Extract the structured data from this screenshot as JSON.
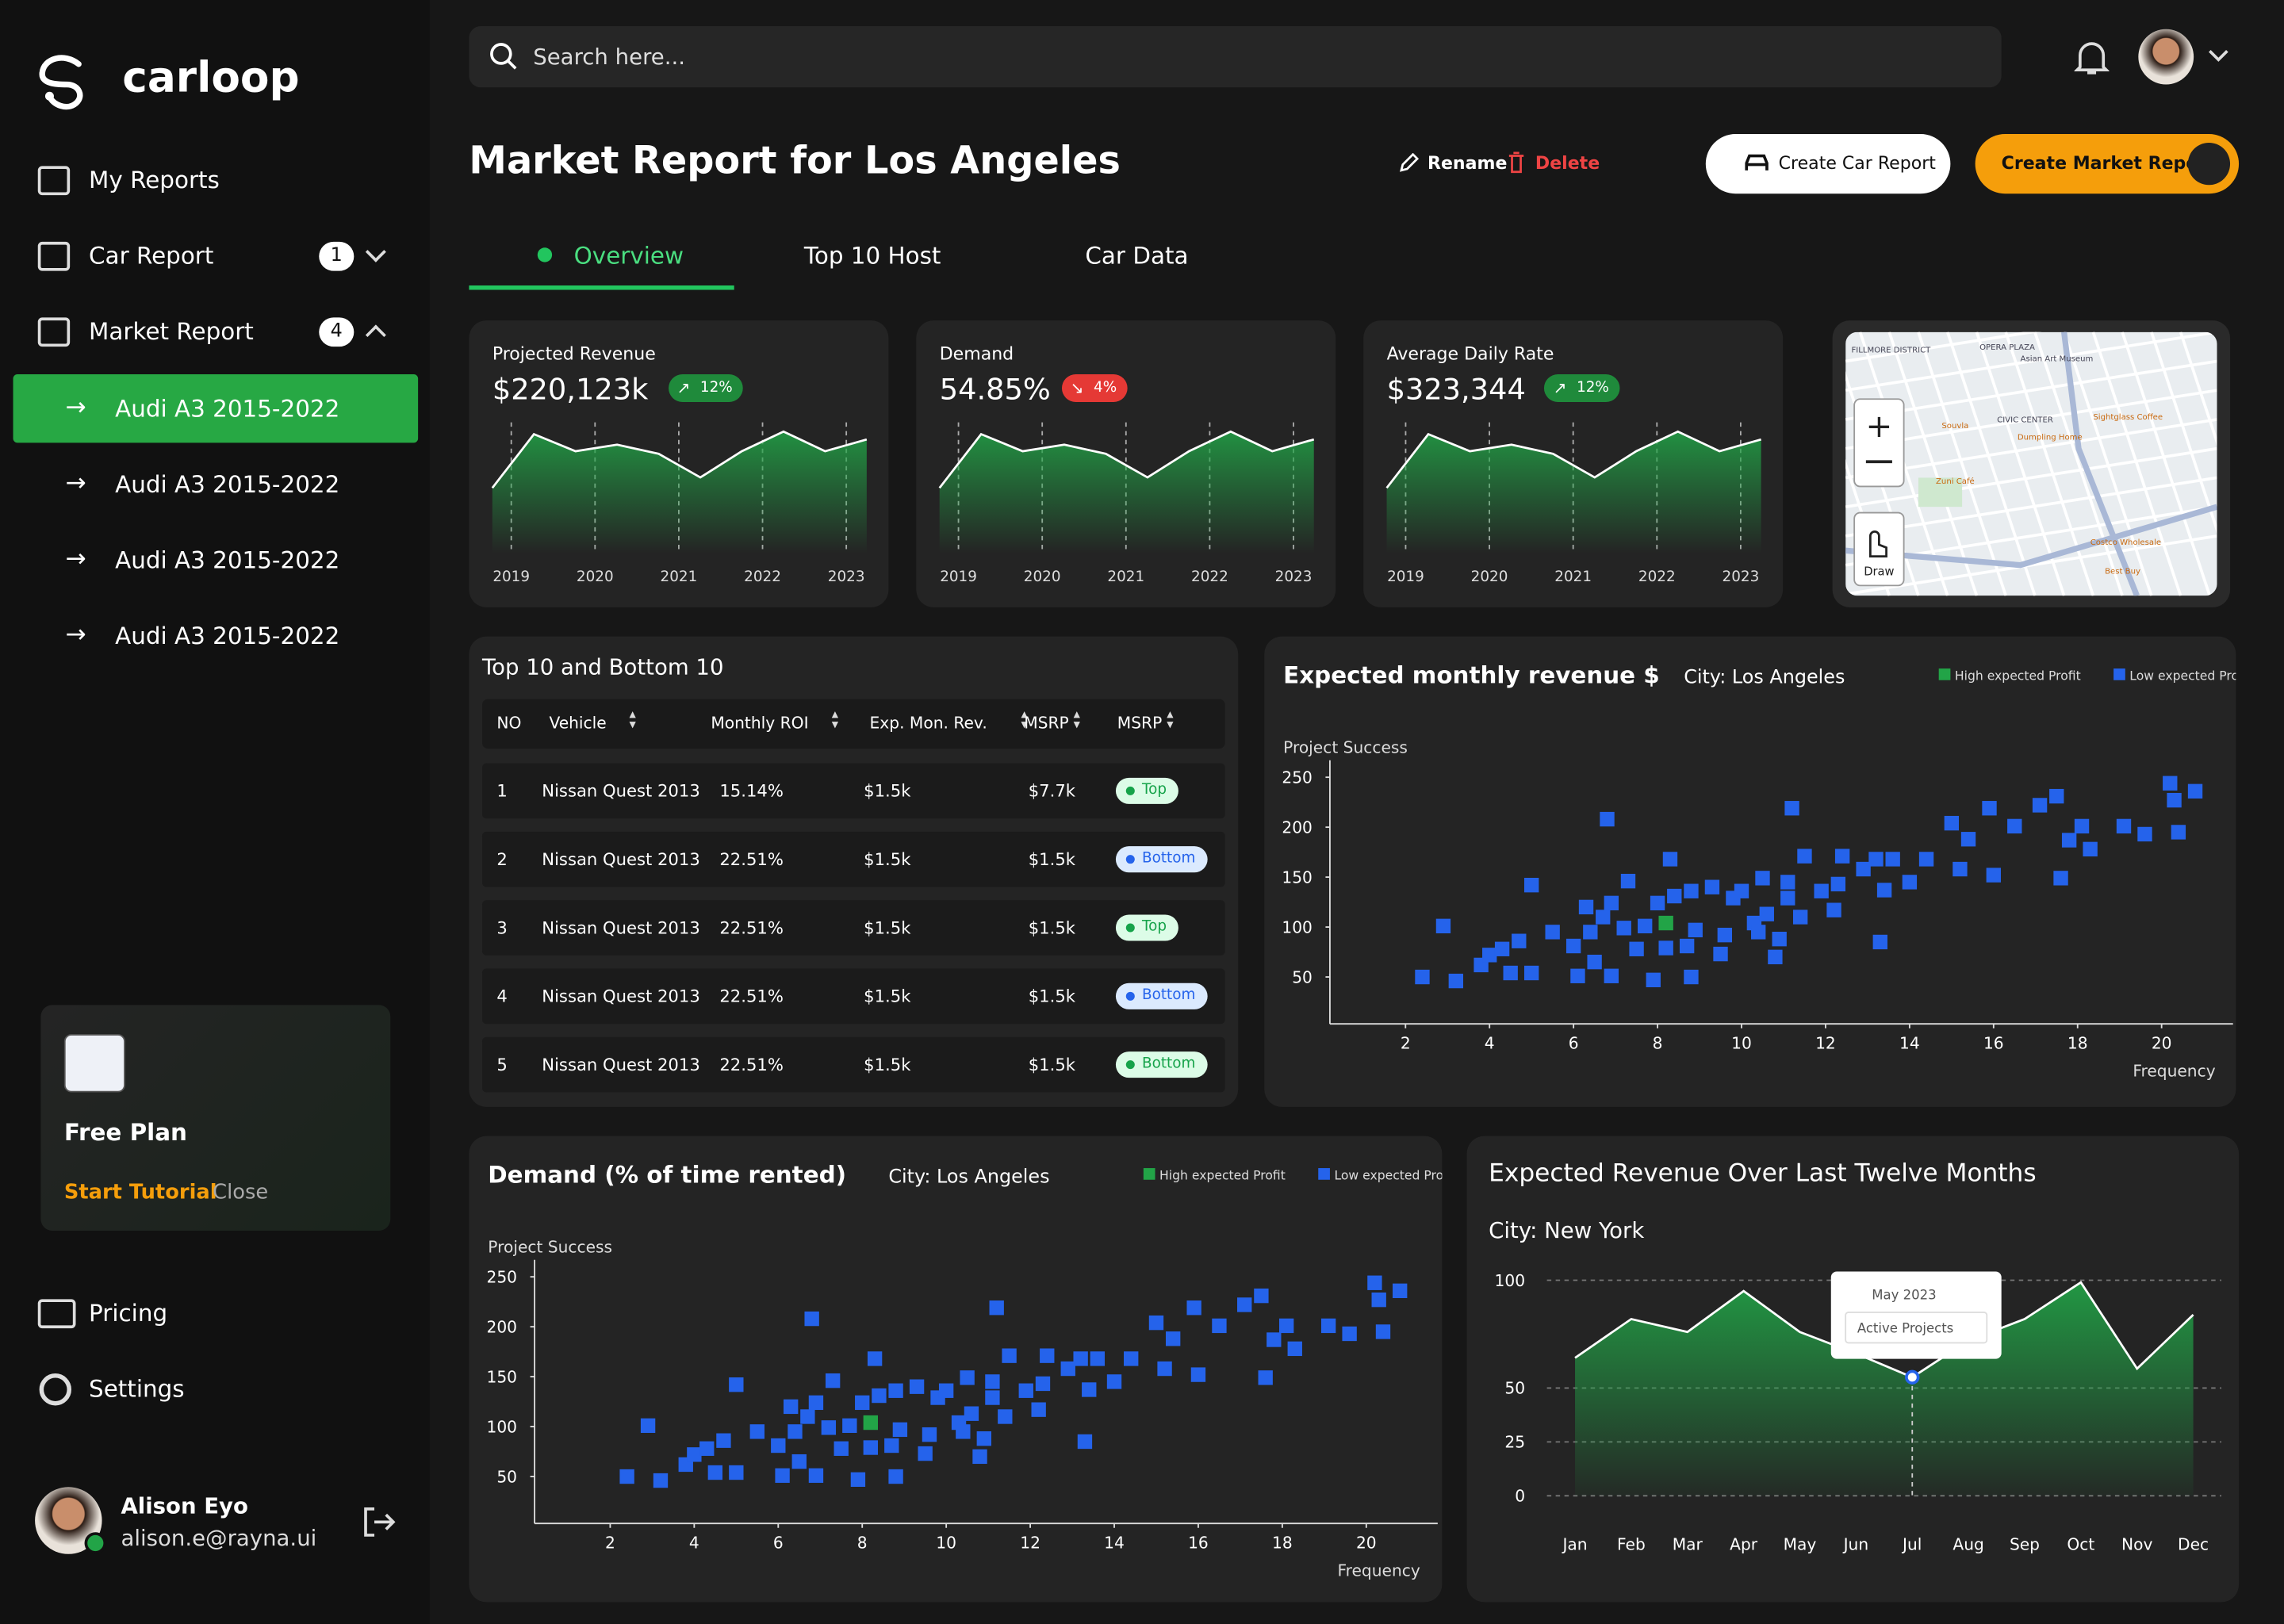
{
  "brand": "carloop",
  "search_placeholder": "Search here...",
  "nav": {
    "items": [
      {
        "label": "My Reports"
      },
      {
        "label": "Car Report",
        "badge": "1"
      },
      {
        "label": "Market Report",
        "badge": "4"
      }
    ],
    "sub_items": [
      "Audi A3 2015-2022",
      "Audi A3 2015-2022",
      "Audi A3 2015-2022",
      "Audi A3 2015-2022"
    ]
  },
  "plan": {
    "title": "Free Plan",
    "start": "Start Tutorial",
    "close": "Close"
  },
  "footer_nav": [
    "Pricing",
    "Settings"
  ],
  "user": {
    "name": "Alison Eyo",
    "email": "alison.e@rayna.ui"
  },
  "header": {
    "title": "Market Report for Los Angeles",
    "rename": "Rename",
    "delete": "Delete",
    "create_car": "Create Car Report",
    "create_market": "Create Market Report"
  },
  "tabs": [
    "Overview",
    "Top 10 Host",
    "Car Data"
  ],
  "kpis": [
    {
      "label": "Projected Revenue",
      "value": "$220,123k",
      "change": "12%",
      "trend": "up",
      "years": [
        "2019",
        "2020",
        "2021",
        "2022",
        "2023"
      ],
      "values": [
        50,
        91,
        78,
        83,
        76,
        58,
        78,
        93,
        78,
        87
      ],
      "ylim": [
        0,
        100
      ]
    },
    {
      "label": "Demand",
      "value": "54.85%",
      "change": "4%",
      "trend": "down",
      "years": [
        "2019",
        "2020",
        "2021",
        "2022",
        "2023"
      ],
      "values": [
        50,
        91,
        78,
        83,
        76,
        58,
        78,
        93,
        78,
        87
      ],
      "ylim": [
        0,
        100
      ]
    },
    {
      "label": "Average Daily Rate",
      "value": "$323,344",
      "change": "12%",
      "trend": "up",
      "years": [
        "2019",
        "2020",
        "2021",
        "2022",
        "2023"
      ],
      "values": [
        50,
        91,
        78,
        83,
        76,
        58,
        78,
        93,
        78,
        87
      ],
      "ylim": [
        0,
        100
      ]
    }
  ],
  "map": {
    "labels": [
      "FILLMORE DISTRICT",
      "OPERA PLAZA",
      "Asian Art Museum",
      "CIVIC CENTER",
      "Souvla",
      "Dumpling Home",
      "Sightglass Coffee",
      "Zuni Café",
      "Costco Wholesale",
      "Best Buy"
    ],
    "draw": "Draw"
  },
  "table": {
    "title": "Top 10 and Bottom 10",
    "columns": [
      "NO",
      "Vehicle",
      "Monthly ROI",
      "Exp. Mon. Rev.",
      "MSRP",
      "MSRP"
    ],
    "rows": [
      {
        "cells": [
          "1",
          "Nissan Quest 2013",
          "15.14%",
          "$1.5k",
          "$7.7k"
        ],
        "tag": "Top",
        "tag_color": "green"
      },
      {
        "cells": [
          "2",
          "Nissan Quest 2013",
          "22.51%",
          "$1.5k",
          "$1.5k"
        ],
        "tag": "Bottom",
        "tag_color": "blue"
      },
      {
        "cells": [
          "3",
          "Nissan Quest 2013",
          "22.51%",
          "$1.5k",
          "$1.5k"
        ],
        "tag": "Top",
        "tag_color": "green"
      },
      {
        "cells": [
          "4",
          "Nissan Quest 2013",
          "22.51%",
          "$1.5k",
          "$1.5k"
        ],
        "tag": "Bottom",
        "tag_color": "blue"
      },
      {
        "cells": [
          "5",
          "Nissan Quest 2013",
          "22.51%",
          "$1.5k",
          "$1.5k"
        ],
        "tag": "Bottom",
        "tag_color": "green"
      }
    ]
  },
  "chart_data": [
    {
      "type": "scatter",
      "title": "Expected monthly revenue $",
      "subtitle": "City: Los Angeles",
      "y_label": "Project Success",
      "x_label": "Frequency",
      "xlim": [
        0.2,
        21.7
      ],
      "ylim": [
        3,
        267
      ],
      "xticks": [
        2,
        4,
        6,
        8,
        10,
        12,
        14,
        16,
        18,
        20
      ],
      "yticks": [
        50,
        100,
        150,
        200,
        250
      ],
      "series": [
        {
          "name": "High expected Profit",
          "color": "#22a447",
          "x": [
            8.2
          ],
          "values": [
            104
          ]
        },
        {
          "name": "Low expected Profit",
          "color": "#2563eb",
          "x": [
            2.4,
            3.2,
            2.9,
            3.8,
            4.0,
            4.3,
            4.5,
            4.7,
            5.0,
            5.0,
            5.5,
            6.0,
            6.1,
            6.3,
            6.4,
            6.5,
            6.7,
            6.8,
            6.9,
            6.9,
            7.2,
            7.3,
            7.5,
            7.7,
            7.9,
            8.0,
            8.2,
            8.3,
            8.4,
            8.7,
            8.8,
            8.8,
            8.9,
            9.3,
            9.5,
            9.6,
            9.8,
            10.0,
            10.3,
            10.4,
            10.5,
            10.6,
            10.8,
            10.9,
            11.1,
            11.1,
            11.2,
            11.4,
            11.5,
            11.9,
            12.2,
            12.3,
            12.4,
            12.9,
            13.2,
            13.3,
            13.4,
            13.6,
            14.0,
            14.4,
            15.0,
            15.2,
            15.4,
            15.9,
            16.0,
            16.5,
            17.1,
            17.5,
            17.6,
            17.8,
            18.1,
            18.3,
            19.1,
            19.6,
            20.2,
            20.3,
            20.4,
            20.8
          ],
          "values": [
            50,
            46,
            101,
            62,
            72,
            78,
            54,
            86,
            142,
            54,
            95,
            81,
            51,
            120,
            95,
            65,
            110,
            208,
            124,
            51,
            99,
            146,
            78,
            101,
            47,
            124,
            79,
            168,
            131,
            81,
            136,
            50,
            97,
            140,
            73,
            92,
            129,
            136,
            104,
            95,
            149,
            113,
            70,
            88,
            129,
            145,
            219,
            110,
            171,
            136,
            117,
            143,
            171,
            158,
            168,
            85,
            137,
            168,
            145,
            168,
            204,
            158,
            188,
            219,
            152,
            201,
            222,
            231,
            149,
            187,
            201,
            178,
            201,
            193,
            244,
            227,
            195,
            236
          ]
        }
      ]
    },
    {
      "type": "scatter",
      "title": "Demand (% of time rented)",
      "subtitle": "City: Los Angeles",
      "y_label": "Project Success",
      "x_label": "Frequency",
      "xlim": [
        0.2,
        21.7
      ],
      "ylim": [
        3,
        267
      ],
      "xticks": [
        2,
        4,
        6,
        8,
        10,
        12,
        14,
        16,
        18,
        20
      ],
      "yticks": [
        50,
        100,
        150,
        200,
        250
      ],
      "series": [
        {
          "name": "High expected Profit",
          "color": "#22a447",
          "x": [
            8.2
          ],
          "values": [
            104
          ]
        },
        {
          "name": "Low expected Profit",
          "color": "#2563eb",
          "x": [
            2.4,
            3.2,
            2.9,
            3.8,
            4.0,
            4.3,
            4.5,
            4.7,
            5.0,
            5.0,
            5.5,
            6.0,
            6.1,
            6.3,
            6.4,
            6.5,
            6.7,
            6.8,
            6.9,
            6.9,
            7.2,
            7.3,
            7.5,
            7.7,
            7.9,
            8.0,
            8.2,
            8.3,
            8.4,
            8.7,
            8.8,
            8.8,
            8.9,
            9.3,
            9.5,
            9.6,
            9.8,
            10.0,
            10.3,
            10.4,
            10.5,
            10.6,
            10.8,
            10.9,
            11.1,
            11.1,
            11.2,
            11.4,
            11.5,
            11.9,
            12.2,
            12.3,
            12.4,
            12.9,
            13.2,
            13.3,
            13.4,
            13.6,
            14.0,
            14.4,
            15.0,
            15.2,
            15.4,
            15.9,
            16.0,
            16.5,
            17.1,
            17.5,
            17.6,
            17.8,
            18.1,
            18.3,
            19.1,
            19.6,
            20.2,
            20.3,
            20.4,
            20.8
          ],
          "values": [
            50,
            46,
            101,
            62,
            72,
            78,
            54,
            86,
            142,
            54,
            95,
            81,
            51,
            120,
            95,
            65,
            110,
            208,
            124,
            51,
            99,
            146,
            78,
            101,
            47,
            124,
            79,
            168,
            131,
            81,
            136,
            50,
            97,
            140,
            73,
            92,
            129,
            136,
            104,
            95,
            149,
            113,
            70,
            88,
            129,
            145,
            219,
            110,
            171,
            136,
            117,
            143,
            171,
            158,
            168,
            85,
            137,
            168,
            145,
            168,
            204,
            158,
            188,
            219,
            152,
            201,
            222,
            231,
            149,
            187,
            201,
            178,
            201,
            193,
            244,
            227,
            195,
            236
          ]
        }
      ]
    },
    {
      "type": "area",
      "title": "Expected Revenue Over Last Twelve Months",
      "subtitle": "City: New York",
      "color": "#22a447",
      "categories": [
        "Jan",
        "Feb",
        "Mar",
        "Apr",
        "May",
        "Jun",
        "Jul",
        "Aug",
        "Sep",
        "Oct",
        "Nov",
        "Dec"
      ],
      "values": [
        64,
        82,
        76,
        95,
        76,
        66,
        55,
        72,
        82,
        99,
        59,
        84
      ],
      "ylim": [
        0,
        100
      ],
      "yticks": [
        0,
        25,
        50,
        100
      ],
      "grid": true,
      "tooltip": {
        "title": "May 2023",
        "label": "Active Projects"
      }
    }
  ]
}
